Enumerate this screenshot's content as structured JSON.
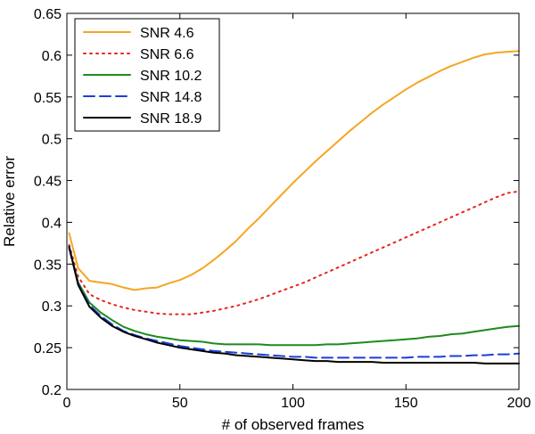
{
  "chart_data": {
    "type": "line",
    "title": "",
    "xlabel": "# of observed frames",
    "ylabel": "Relative error",
    "xlim": [
      0,
      200
    ],
    "ylim": [
      0.2,
      0.65
    ],
    "xticks": [
      0,
      50,
      100,
      150,
      200
    ],
    "xtick_labels": [
      "0",
      "50",
      "100",
      "150",
      "200"
    ],
    "yticks": [
      0.2,
      0.25,
      0.3,
      0.35,
      0.4,
      0.45,
      0.5,
      0.55,
      0.6,
      0.65
    ],
    "ytick_labels": [
      "0.2",
      "0.25",
      "0.3",
      "0.35",
      "0.4",
      "0.45",
      "0.5",
      "0.55",
      "0.6",
      "0.65"
    ],
    "grid": false,
    "legend_position": "top-left",
    "x": [
      1,
      5,
      10,
      15,
      20,
      25,
      30,
      35,
      40,
      45,
      50,
      55,
      60,
      65,
      70,
      75,
      80,
      85,
      90,
      95,
      100,
      105,
      110,
      115,
      120,
      125,
      130,
      135,
      140,
      145,
      150,
      155,
      160,
      165,
      170,
      175,
      180,
      185,
      190,
      195,
      200
    ],
    "series": [
      {
        "name": "SNR 4.6",
        "color": "#F5A623",
        "dash": "solid",
        "values": [
          0.387,
          0.345,
          0.33,
          0.328,
          0.326,
          0.322,
          0.319,
          0.321,
          0.322,
          0.327,
          0.331,
          0.337,
          0.345,
          0.355,
          0.366,
          0.378,
          0.392,
          0.405,
          0.419,
          0.433,
          0.447,
          0.46,
          0.473,
          0.485,
          0.497,
          0.509,
          0.52,
          0.531,
          0.541,
          0.55,
          0.559,
          0.567,
          0.574,
          0.581,
          0.587,
          0.592,
          0.597,
          0.601,
          0.603,
          0.604,
          0.605
        ]
      },
      {
        "name": "SNR 6.6",
        "color": "#E8241D",
        "dash": "dotted",
        "values": [
          0.373,
          0.335,
          0.314,
          0.307,
          0.302,
          0.298,
          0.295,
          0.293,
          0.291,
          0.29,
          0.29,
          0.29,
          0.292,
          0.294,
          0.297,
          0.3,
          0.304,
          0.308,
          0.313,
          0.318,
          0.323,
          0.328,
          0.334,
          0.34,
          0.346,
          0.352,
          0.358,
          0.364,
          0.37,
          0.376,
          0.382,
          0.388,
          0.394,
          0.4,
          0.406,
          0.412,
          0.418,
          0.424,
          0.43,
          0.435,
          0.437
        ]
      },
      {
        "name": "SNR 10.2",
        "color": "#1E8A1E",
        "dash": "solid",
        "values": [
          0.37,
          0.328,
          0.304,
          0.292,
          0.283,
          0.275,
          0.27,
          0.266,
          0.263,
          0.261,
          0.259,
          0.258,
          0.257,
          0.255,
          0.254,
          0.254,
          0.254,
          0.254,
          0.253,
          0.253,
          0.253,
          0.253,
          0.253,
          0.254,
          0.254,
          0.255,
          0.256,
          0.257,
          0.258,
          0.259,
          0.26,
          0.261,
          0.263,
          0.264,
          0.266,
          0.267,
          0.269,
          0.271,
          0.273,
          0.275,
          0.276
        ]
      },
      {
        "name": "SNR 14.8",
        "color": "#1A3FD8",
        "dash": "dashed",
        "values": [
          0.369,
          0.326,
          0.301,
          0.288,
          0.278,
          0.27,
          0.265,
          0.261,
          0.258,
          0.255,
          0.252,
          0.25,
          0.248,
          0.246,
          0.245,
          0.244,
          0.243,
          0.242,
          0.241,
          0.24,
          0.239,
          0.239,
          0.238,
          0.238,
          0.238,
          0.238,
          0.238,
          0.238,
          0.238,
          0.238,
          0.238,
          0.239,
          0.239,
          0.239,
          0.24,
          0.24,
          0.241,
          0.241,
          0.242,
          0.242,
          0.243
        ]
      },
      {
        "name": "SNR 18.9",
        "color": "#000000",
        "dash": "solid",
        "values": [
          0.371,
          0.325,
          0.299,
          0.286,
          0.276,
          0.269,
          0.264,
          0.26,
          0.256,
          0.253,
          0.25,
          0.248,
          0.246,
          0.244,
          0.243,
          0.241,
          0.24,
          0.239,
          0.238,
          0.237,
          0.236,
          0.235,
          0.234,
          0.234,
          0.233,
          0.233,
          0.233,
          0.233,
          0.232,
          0.232,
          0.232,
          0.232,
          0.232,
          0.232,
          0.232,
          0.232,
          0.232,
          0.231,
          0.231,
          0.231,
          0.231
        ]
      }
    ]
  }
}
